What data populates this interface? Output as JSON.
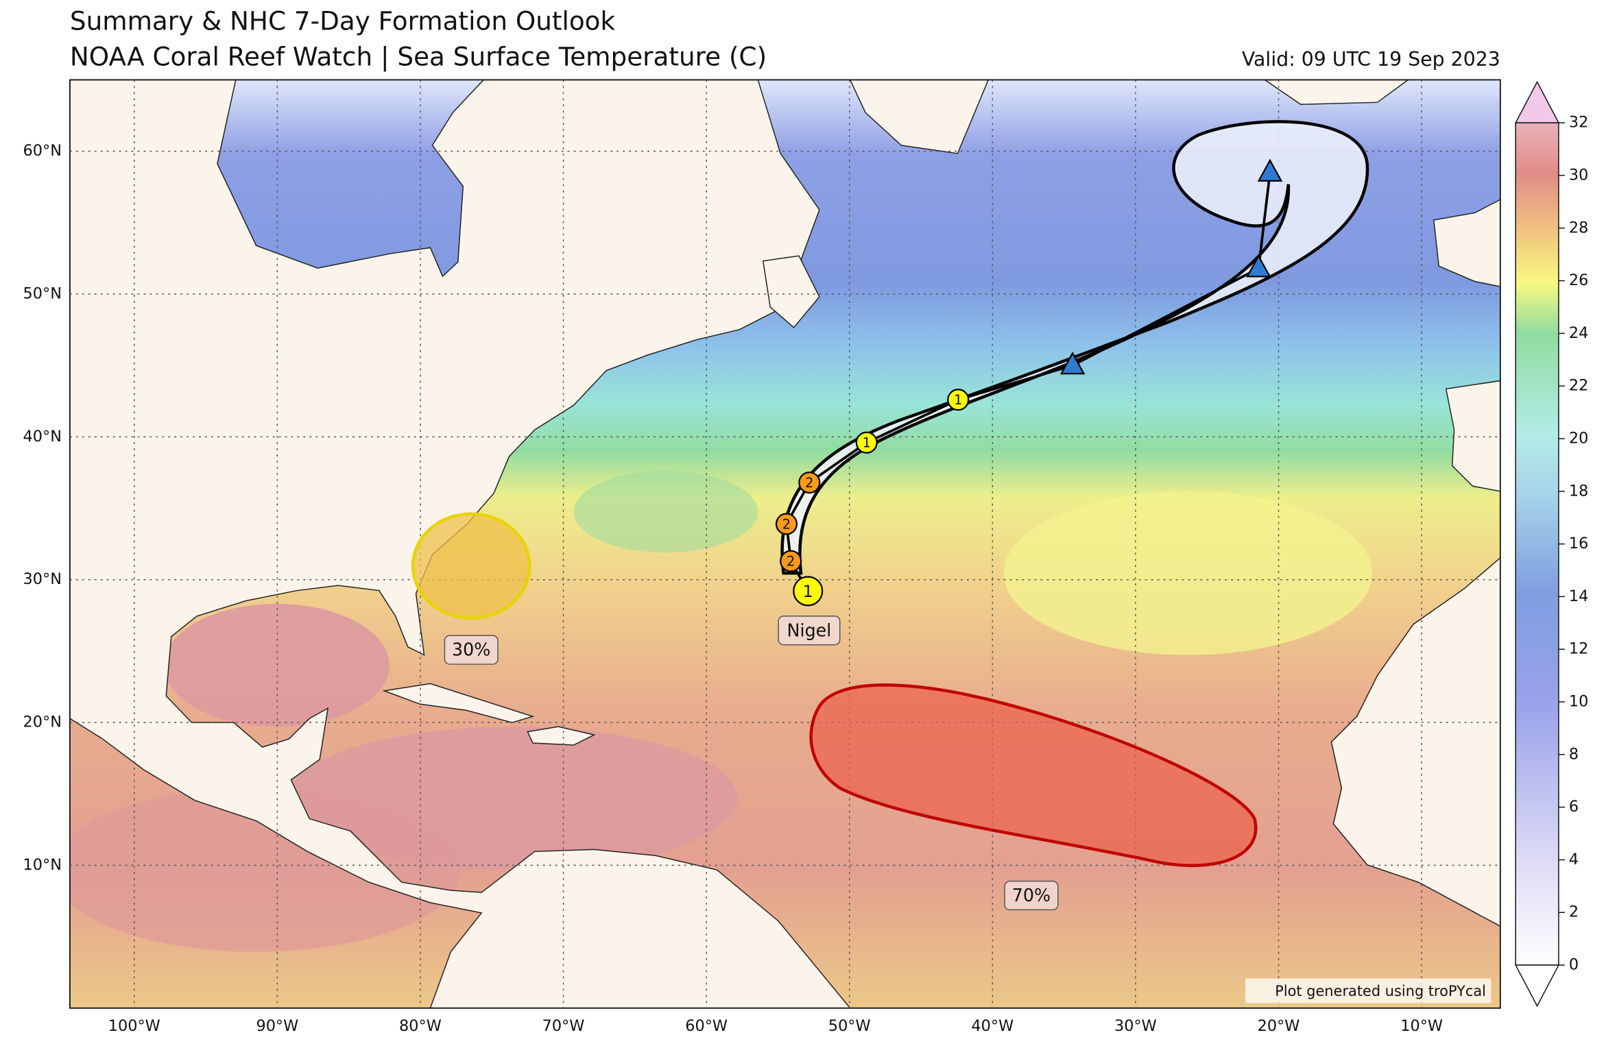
{
  "header": {
    "title": "Summary & NHC 7-Day Formation Outlook",
    "subtitle": "NOAA Coral Reef Watch | Sea Surface Temperature (C)",
    "valid": "Valid: 09 UTC 19 Sep 2023"
  },
  "map": {
    "xlim": [
      -104.5,
      -4.5
    ],
    "ylim": [
      0,
      65
    ],
    "xticks": [
      {
        "value": -100,
        "label": "100°W"
      },
      {
        "value": -90,
        "label": "90°W"
      },
      {
        "value": -80,
        "label": "80°W"
      },
      {
        "value": -70,
        "label": "70°W"
      },
      {
        "value": -60,
        "label": "60°W"
      },
      {
        "value": -50,
        "label": "50°W"
      },
      {
        "value": -40,
        "label": "40°W"
      },
      {
        "value": -30,
        "label": "30°W"
      },
      {
        "value": -20,
        "label": "20°W"
      },
      {
        "value": -10,
        "label": "10°W"
      }
    ],
    "yticks": [
      {
        "value": 10,
        "label": "10°N"
      },
      {
        "value": 20,
        "label": "20°N"
      },
      {
        "value": 30,
        "label": "30°N"
      },
      {
        "value": 40,
        "label": "40°N"
      },
      {
        "value": 50,
        "label": "50°N"
      },
      {
        "value": 60,
        "label": "60°N"
      }
    ],
    "grid": true
  },
  "colorbar": {
    "lim": [
      0,
      32
    ],
    "ticks": [
      0,
      2,
      4,
      6,
      8,
      10,
      12,
      14,
      16,
      18,
      20,
      22,
      24,
      26,
      28,
      30,
      32
    ]
  },
  "storm": {
    "name": "Nigel",
    "track": [
      {
        "lon": -52.9,
        "lat": 29.2,
        "label": "1",
        "shape": "circle",
        "color": "#ffff00"
      },
      {
        "lon": -54.1,
        "lat": 31.3,
        "label": "2",
        "shape": "circle",
        "color": "#ff9a1a"
      },
      {
        "lon": -54.4,
        "lat": 33.9,
        "label": "2",
        "shape": "circle",
        "color": "#ff9a1a"
      },
      {
        "lon": -52.8,
        "lat": 36.8,
        "label": "2",
        "shape": "circle",
        "color": "#ff9a1a"
      },
      {
        "lon": -48.8,
        "lat": 39.6,
        "label": "1",
        "shape": "circle",
        "color": "#ffff00"
      },
      {
        "lon": -42.4,
        "lat": 42.6,
        "label": "1",
        "shape": "circle",
        "color": "#ffff00"
      },
      {
        "lon": -34.4,
        "lat": 45.0,
        "shape": "triangle",
        "color": "#2e7bd1"
      },
      {
        "lon": -21.4,
        "lat": 51.8,
        "shape": "triangle",
        "color": "#2e7bd1"
      },
      {
        "lon": -20.6,
        "lat": 58.5,
        "shape": "triangle",
        "color": "#2e7bd1"
      }
    ]
  },
  "outlooks": [
    {
      "label": "30%"
    },
    {
      "label": "70%"
    }
  ],
  "credit": "Plot generated using troPYcal"
}
